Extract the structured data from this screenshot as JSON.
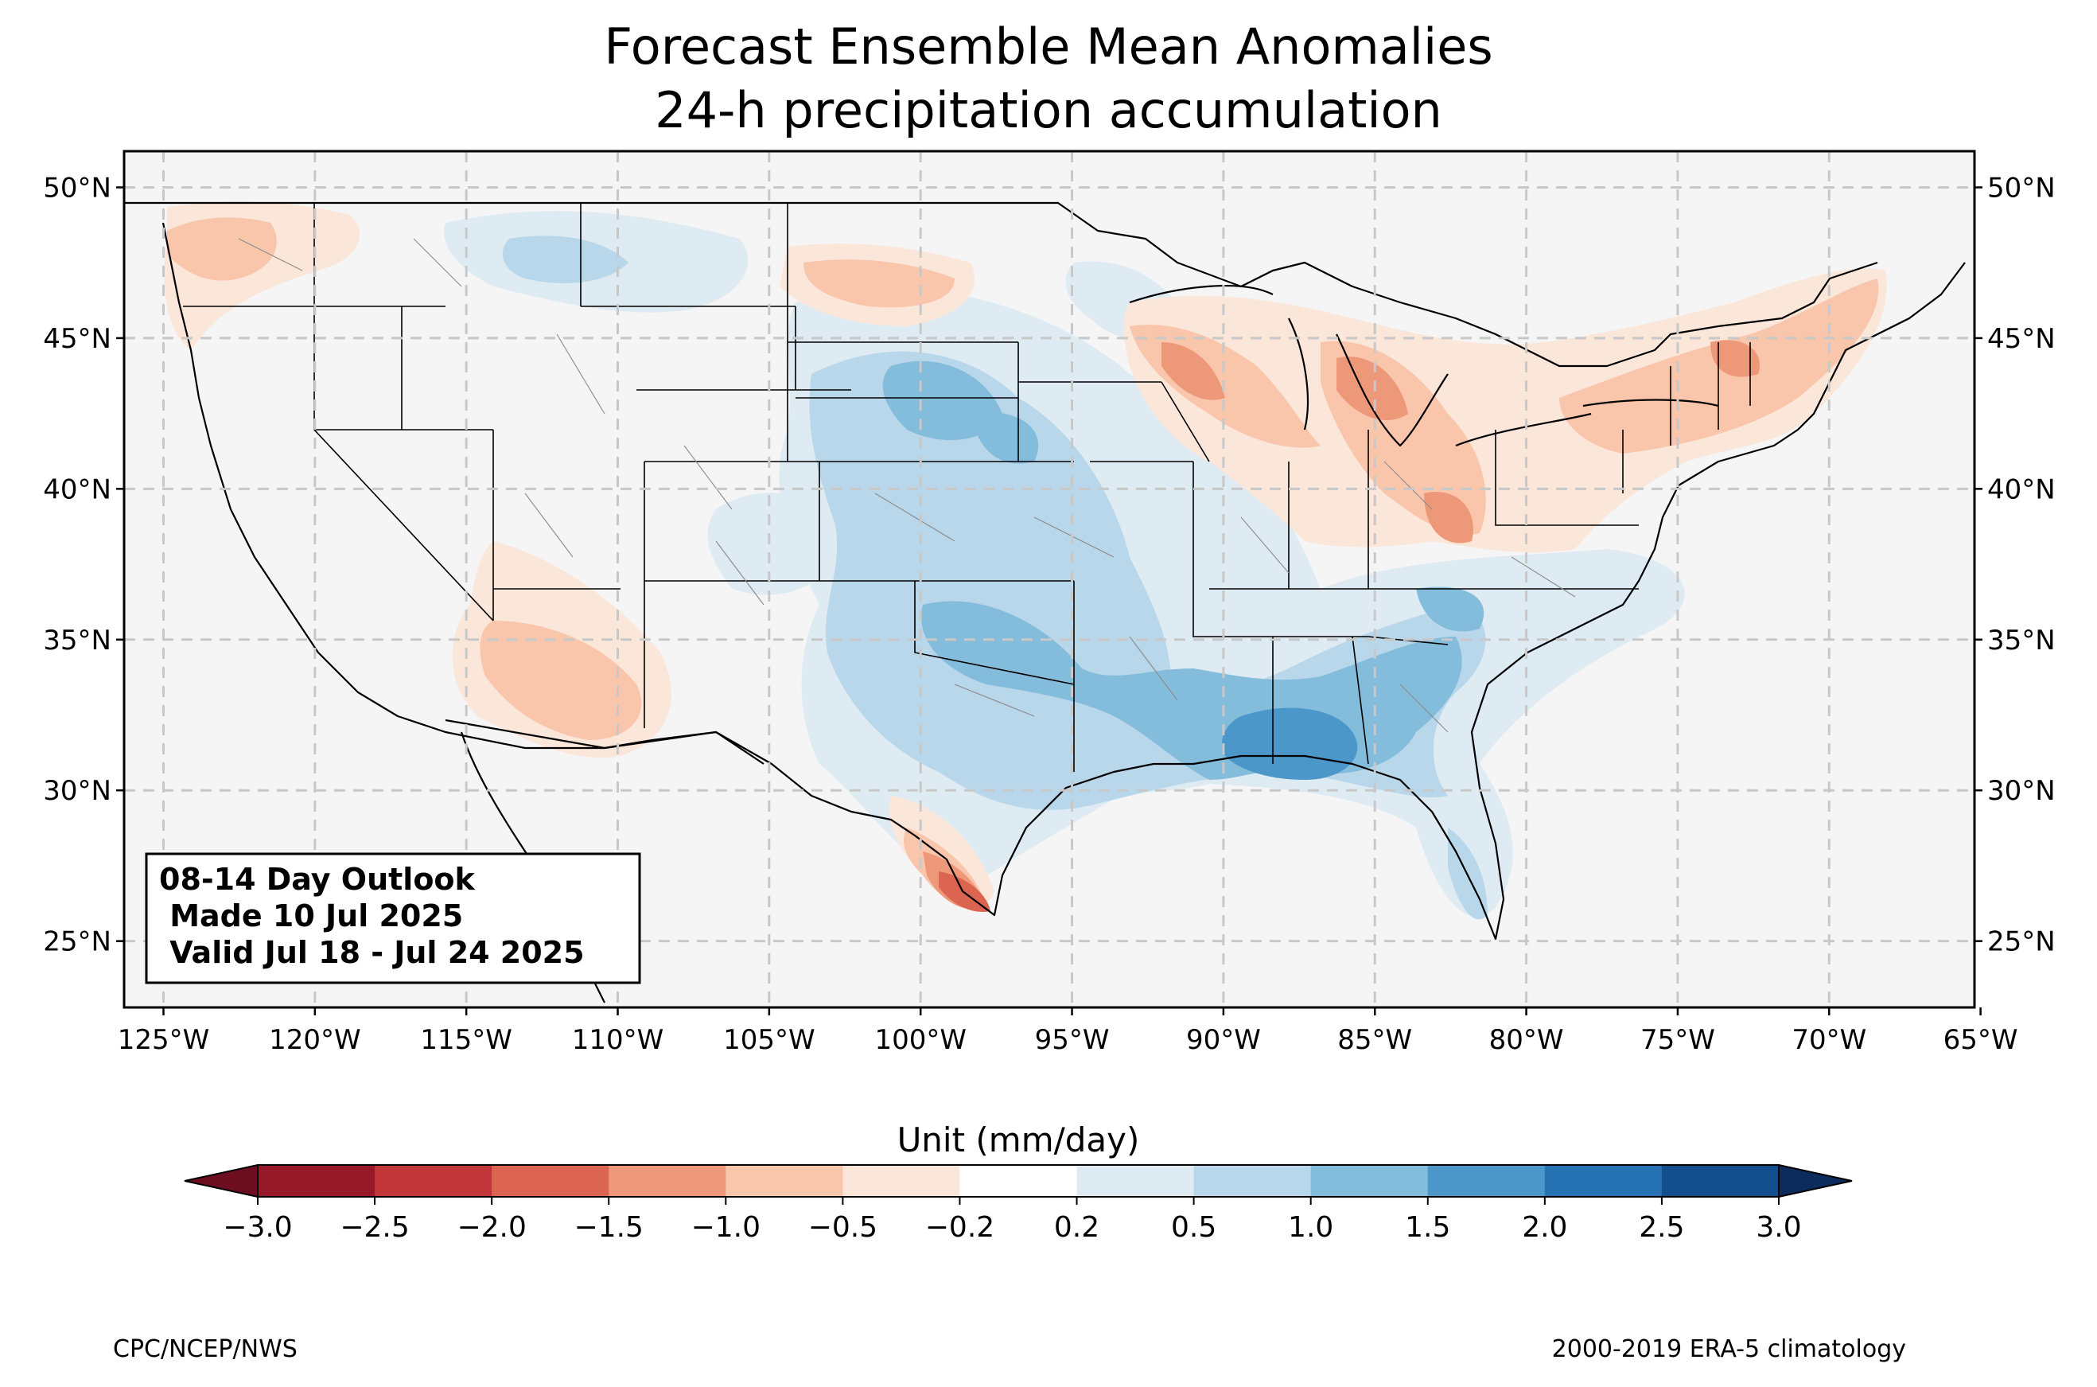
{
  "title_line1": "Forecast Ensemble Mean Anomalies",
  "title_line2": "24-h precipitation accumulation",
  "outlook": {
    "line1": "08-14 Day Outlook",
    "line2": " Made 10 Jul 2025",
    "line3": " Valid Jul 18 - Jul 24 2025"
  },
  "map": {
    "lon_range": [
      -126.3,
      -65.2
    ],
    "lat_range": [
      22.8,
      51.2
    ],
    "lon_ticks": [
      "125°W",
      "120°W",
      "115°W",
      "110°W",
      "105°W",
      "100°W",
      "95°W",
      "90°W",
      "85°W",
      "80°W",
      "75°W",
      "70°W",
      "65°W"
    ],
    "lat_ticks": [
      "25°N",
      "30°N",
      "35°N",
      "40°N",
      "45°N",
      "50°N"
    ],
    "grid": true,
    "land_color": "#f5f5f5"
  },
  "colorbar": {
    "label": "Unit (mm/day)",
    "ticks": [
      "−3.0",
      "−2.5",
      "−2.0",
      "−1.5",
      "−1.0",
      "−0.5",
      "−0.2",
      "0.2",
      "0.5",
      "1.0",
      "1.5",
      "2.0",
      "2.5",
      "3.0"
    ],
    "colors": [
      "#971828",
      "#c13639",
      "#db6551",
      "#ee987a",
      "#f9c5ab",
      "#fbe6da",
      "#ffffff",
      "#dfebf3",
      "#b9d7ea",
      "#84bcdb",
      "#4b97c9",
      "#2671b2",
      "#134f8f"
    ],
    "extend_low_color": "#6d0d20",
    "extend_high_color": "#0c2c5e"
  },
  "footer": {
    "left": "CPC/NCEP/NWS",
    "right": "2000-2019 ERA-5 climatology"
  },
  "anomaly_colors": {
    "wet_light": "#dfebf3",
    "wet_mid": "#b9d7ea",
    "wet_strong": "#84bcdb",
    "wet_max": "#4b97c9",
    "dry_light": "#fbe6da",
    "dry_mid": "#f9c5ab",
    "dry_strong": "#ee987a",
    "dry_max": "#db6551"
  }
}
